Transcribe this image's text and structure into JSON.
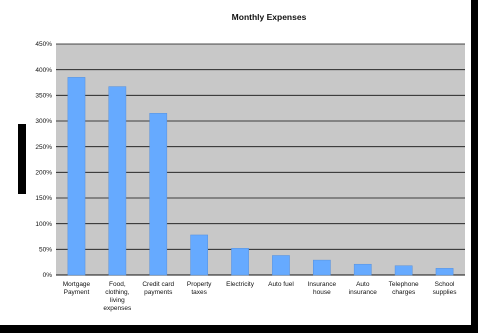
{
  "chart_data": {
    "type": "bar",
    "title": "Monthly Expenses",
    "xlabel": "",
    "ylabel": "",
    "ylim": [
      0,
      450
    ],
    "ytick_step": 50,
    "ytick_labels": [
      "0%",
      "50%",
      "100%",
      "150%",
      "200%",
      "250%",
      "300%",
      "350%",
      "400%",
      "450%"
    ],
    "categories": [
      [
        "Mortgage",
        "Payment"
      ],
      [
        "Food,",
        "clothing,",
        "living",
        "expenses"
      ],
      [
        "Credit card",
        "payments"
      ],
      [
        "Property",
        "taxes"
      ],
      [
        "Electricity"
      ],
      [
        "Auto fuel"
      ],
      [
        "Insurance",
        "house"
      ],
      [
        "Auto",
        "insurance"
      ],
      [
        "Telephone",
        "charges"
      ],
      [
        "School",
        "supplies"
      ]
    ],
    "values": [
      385,
      367,
      315,
      78,
      52,
      38,
      29,
      21,
      18,
      13
    ],
    "grid": true,
    "legend": "none",
    "colors": {
      "bar": "#66aaff",
      "bar_edge": "#5590dd",
      "plot_bg": "#c8c8c8",
      "grid": "#111111"
    }
  }
}
